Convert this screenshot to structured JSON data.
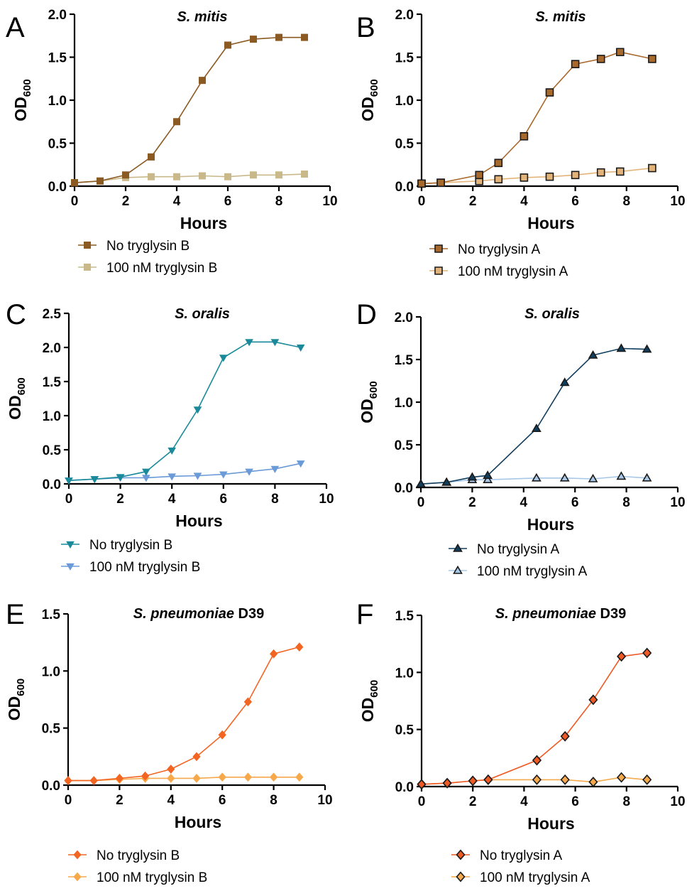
{
  "chart_data": [
    {
      "panel": "A",
      "type": "line",
      "title_italic": "S. mitis",
      "title_rest": "",
      "xlabel": "Hours",
      "ylabel_main": "OD",
      "ylabel_sub": "600",
      "xlim": [
        0,
        10
      ],
      "ylim": [
        0,
        2.0
      ],
      "xticks": [
        0,
        2,
        4,
        6,
        8,
        10
      ],
      "xtick_labels": [
        "0",
        "2",
        "4",
        "6",
        "8",
        "10"
      ],
      "yticks": [
        0,
        0.5,
        1.0,
        1.5,
        2.0
      ],
      "ytick_labels": [
        "0.0",
        "0.5",
        "1.0",
        "1.5",
        "2.0"
      ],
      "marker": "square",
      "outlined": false,
      "series": [
        {
          "name": "No tryglysin B",
          "color": "#8B5A22",
          "x": [
            0,
            1,
            2,
            3,
            4,
            5,
            6,
            7,
            8,
            9
          ],
          "y": [
            0.04,
            0.06,
            0.13,
            0.34,
            0.75,
            1.23,
            1.64,
            1.71,
            1.73,
            1.73
          ]
        },
        {
          "name": "100 nM tryglysin B",
          "color": "#C9B98A",
          "x": [
            0,
            1,
            2,
            3,
            4,
            5,
            6,
            7,
            8,
            9
          ],
          "y": [
            0.04,
            0.06,
            0.1,
            0.11,
            0.11,
            0.12,
            0.11,
            0.13,
            0.13,
            0.14
          ]
        }
      ]
    },
    {
      "panel": "B",
      "type": "line",
      "title_italic": "S. mitis",
      "title_rest": "",
      "xlabel": "Hours",
      "ylabel_main": "OD",
      "ylabel_sub": "600",
      "xlim": [
        0,
        10
      ],
      "ylim": [
        0,
        2.0
      ],
      "xticks": [
        0,
        2,
        4,
        6,
        8,
        10
      ],
      "xtick_labels": [
        "0",
        "2",
        "4",
        "6",
        "8",
        "10"
      ],
      "yticks": [
        0,
        0.5,
        1.0,
        1.5,
        2.0
      ],
      "ytick_labels": [
        "0.0",
        "0.5",
        "1.0",
        "1.5",
        "2.0"
      ],
      "marker": "square",
      "outlined": true,
      "series": [
        {
          "name": "No tryglysin A",
          "color": "#A8692C",
          "x": [
            0,
            0.75,
            2.25,
            3,
            4,
            5,
            6,
            7,
            7.75,
            9
          ],
          "y": [
            0.03,
            0.04,
            0.13,
            0.27,
            0.58,
            1.09,
            1.42,
            1.48,
            1.56,
            1.48
          ]
        },
        {
          "name": "100 nM tryglysin A",
          "color": "#E3B47A",
          "x": [
            0,
            0.75,
            2.25,
            3,
            4,
            5,
            6,
            7,
            7.75,
            9
          ],
          "y": [
            0.03,
            0.04,
            0.06,
            0.08,
            0.1,
            0.11,
            0.13,
            0.16,
            0.17,
            0.21
          ]
        }
      ]
    },
    {
      "panel": "C",
      "type": "line",
      "title_italic": "S. oralis",
      "title_rest": "",
      "xlabel": "Hours",
      "ylabel_main": "OD",
      "ylabel_sub": "600",
      "xlim": [
        0,
        10
      ],
      "ylim": [
        0,
        2.5
      ],
      "xticks": [
        0,
        2,
        4,
        6,
        8,
        10
      ],
      "xtick_labels": [
        "0",
        "2",
        "4",
        "6",
        "8",
        "10"
      ],
      "yticks": [
        0,
        0.5,
        1.0,
        1.5,
        2.0,
        2.5
      ],
      "ytick_labels": [
        "0.0",
        "0.5",
        "1.0",
        "1.5",
        "2.0",
        "2.5"
      ],
      "marker": "triangle-down",
      "outlined": false,
      "series": [
        {
          "name": "No tryglysin B",
          "color": "#1A8A9A",
          "x": [
            0,
            1,
            2,
            3,
            4,
            5,
            6,
            7,
            8,
            9
          ],
          "y": [
            0.05,
            0.07,
            0.1,
            0.18,
            0.49,
            1.09,
            1.85,
            2.08,
            2.08,
            2.0
          ]
        },
        {
          "name": "100 nM tryglysin B",
          "color": "#6A9AD8",
          "x": [
            0,
            1,
            2,
            3,
            4,
            5,
            6,
            7,
            8,
            9
          ],
          "y": [
            0.05,
            0.07,
            0.09,
            0.09,
            0.11,
            0.12,
            0.14,
            0.18,
            0.22,
            0.3
          ]
        }
      ]
    },
    {
      "panel": "D",
      "type": "line",
      "title_italic": "S. oralis",
      "title_rest": "",
      "xlabel": "Hours",
      "ylabel_main": "OD",
      "ylabel_sub": "600",
      "xlim": [
        0,
        10
      ],
      "ylim": [
        0,
        2.0
      ],
      "xticks": [
        0,
        2,
        4,
        6,
        8,
        10
      ],
      "xtick_labels": [
        "0",
        "2",
        "4",
        "6",
        "8",
        "10"
      ],
      "yticks": [
        0,
        0.5,
        1.0,
        1.5,
        2.0
      ],
      "ytick_labels": [
        "0.0",
        "0.5",
        "1.0",
        "1.5",
        "2.0"
      ],
      "marker": "triangle-up",
      "outlined": true,
      "series": [
        {
          "name": "No tryglysin A",
          "color": "#123E5E",
          "x": [
            0,
            1,
            2,
            2.6,
            4.5,
            5.6,
            6.7,
            7.8,
            8.8
          ],
          "y": [
            0.04,
            0.06,
            0.12,
            0.14,
            0.69,
            1.23,
            1.55,
            1.63,
            1.62
          ]
        },
        {
          "name": "100 nM tryglysin A",
          "color": "#A8C8E8",
          "x": [
            0,
            1,
            2,
            2.6,
            4.5,
            5.6,
            6.7,
            7.8,
            8.8
          ],
          "y": [
            0.04,
            0.06,
            0.09,
            0.09,
            0.11,
            0.11,
            0.1,
            0.13,
            0.11
          ]
        }
      ]
    },
    {
      "panel": "E",
      "type": "line",
      "title_italic": "S. pneumoniae",
      "title_rest": " D39",
      "xlabel": "Hours",
      "ylabel_main": "OD",
      "ylabel_sub": "600",
      "xlim": [
        0,
        10
      ],
      "ylim": [
        0,
        1.5
      ],
      "xticks": [
        0,
        2,
        4,
        6,
        8,
        10
      ],
      "xtick_labels": [
        "0",
        "2",
        "4",
        "6",
        "8",
        "10"
      ],
      "yticks": [
        0,
        0.5,
        1.0,
        1.5
      ],
      "ytick_labels": [
        "0.0",
        "0.5",
        "1.0",
        "1.5"
      ],
      "marker": "diamond",
      "outlined": false,
      "series": [
        {
          "name": "No tryglysin B",
          "color": "#F26522",
          "x": [
            0,
            1,
            2,
            3,
            4,
            5,
            6,
            7,
            8,
            9
          ],
          "y": [
            0.04,
            0.04,
            0.06,
            0.08,
            0.14,
            0.25,
            0.44,
            0.73,
            1.15,
            1.21
          ]
        },
        {
          "name": "100 nM tryglysin B",
          "color": "#F7A84A",
          "x": [
            0,
            1,
            2,
            3,
            4,
            5,
            6,
            7,
            8,
            9
          ],
          "y": [
            0.04,
            0.04,
            0.05,
            0.06,
            0.06,
            0.06,
            0.07,
            0.07,
            0.07,
            0.07
          ]
        }
      ]
    },
    {
      "panel": "F",
      "type": "line",
      "title_italic": "S. pneumoniae",
      "title_rest": " D39",
      "xlabel": "Hours",
      "ylabel_main": "OD",
      "ylabel_sub": "600",
      "xlim": [
        0,
        10
      ],
      "ylim": [
        0,
        1.5
      ],
      "xticks": [
        0,
        2,
        4,
        6,
        8,
        10
      ],
      "xtick_labels": [
        "0",
        "2",
        "4",
        "6",
        "8",
        "10"
      ],
      "yticks": [
        0,
        0.5,
        1.0,
        1.5
      ],
      "ytick_labels": [
        "0.0",
        "0.5",
        "1.0",
        "1.5"
      ],
      "marker": "diamond",
      "outlined": true,
      "series": [
        {
          "name": "No tryglysin A",
          "color": "#EF5A24",
          "x": [
            0,
            1,
            2,
            2.6,
            4.5,
            5.6,
            6.7,
            7.8,
            8.8
          ],
          "y": [
            0.02,
            0.03,
            0.05,
            0.06,
            0.23,
            0.44,
            0.76,
            1.14,
            1.17
          ]
        },
        {
          "name": "100 nM tryglysin A",
          "color": "#F5A94C",
          "x": [
            0,
            1,
            2,
            2.6,
            4.5,
            5.6,
            6.7,
            7.8,
            8.8
          ],
          "y": [
            0.02,
            0.03,
            0.05,
            0.06,
            0.06,
            0.06,
            0.04,
            0.08,
            0.06
          ]
        }
      ]
    }
  ]
}
